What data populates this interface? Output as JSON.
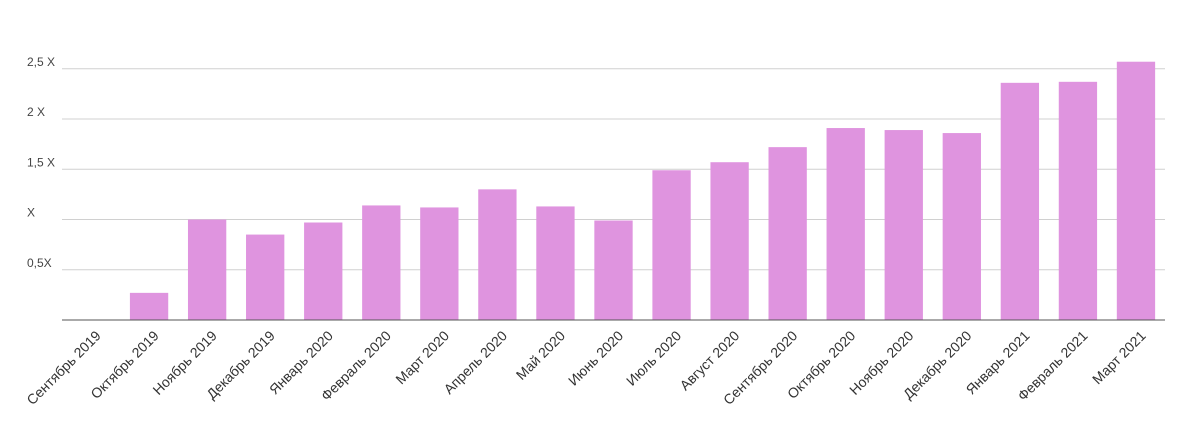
{
  "chart_data": {
    "type": "bar",
    "categories": [
      "Сентябрь 2019",
      "Октябрь 2019",
      "Ноябрь 2019",
      "Декабрь 2019",
      "Январь 2020",
      "Февраль 2020",
      "Март 2020",
      "Апрель 2020",
      "Май 2020",
      "Июнь 2020",
      "Июль 2020",
      "Август 2020",
      "Сентябрь 2020",
      "Октябрь 2020",
      "Ноябрь 2020",
      "Декабрь 2020",
      "Январь 2021",
      "Февраль 2021",
      "Март 2021"
    ],
    "values": [
      0,
      0.27,
      1.0,
      0.85,
      0.97,
      1.14,
      1.12,
      1.3,
      1.13,
      0.99,
      1.49,
      1.57,
      1.72,
      1.91,
      1.89,
      1.86,
      2.36,
      2.37,
      2.57
    ],
    "color": "#df94df",
    "ylim": [
      0,
      2.6
    ],
    "yticks": [
      {
        "value": 0.5,
        "label": "0,5X"
      },
      {
        "value": 1,
        "label": "X"
      },
      {
        "value": 1.5,
        "label": "1,5 X"
      },
      {
        "value": 2,
        "label": "2 X"
      },
      {
        "value": 2.5,
        "label": "2,5 X"
      }
    ],
    "grid": true
  }
}
